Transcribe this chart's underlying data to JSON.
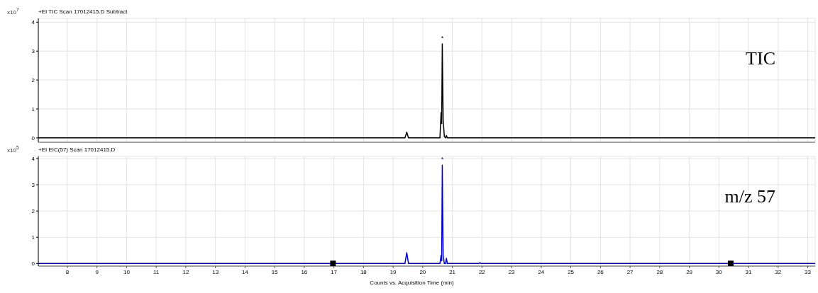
{
  "chart_data": [
    {
      "type": "line",
      "title": "+EI TIC Scan 17012415.D  Subtract",
      "ylabel": "x10$^{7}$",
      "xlim": [
        7.02,
        33.25
      ],
      "xticks": [
        8,
        9,
        10,
        11,
        12,
        13,
        14,
        15,
        16,
        17,
        18,
        19,
        20,
        21,
        22,
        23,
        24,
        25,
        26,
        27,
        28,
        29,
        30,
        31,
        32,
        33
      ],
      "ylim": [
        -0.15,
        4.13
      ],
      "yticks": [
        0,
        1,
        2,
        3,
        4
      ],
      "grid": true,
      "tick_labels": "y",
      "marker": "none",
      "annotations": [
        "TIC",
        {
          "text": "*",
          "x": 20.66,
          "y": 3.25
        }
      ],
      "series": [
        {
          "color": "#000000",
          "x": [
            7.02,
            19.4,
            19.46,
            19.52,
            20.58,
            20.62,
            20.64,
            20.66,
            20.69,
            20.73,
            20.77,
            20.8,
            20.83,
            33.25
          ],
          "values": [
            0,
            0,
            0.2,
            0,
            0,
            0.88,
            0.5,
            3.25,
            0.6,
            0.05,
            0,
            0.08,
            0,
            0
          ]
        }
      ]
    },
    {
      "type": "line",
      "title": "+EI EIC(57) Scan 17012415.D",
      "ylabel": "x10$^{5}$",
      "xlabel": "Counts vs. Acquisition Time (min)",
      "xlim": [
        7.02,
        33.25
      ],
      "xticks": [
        8,
        9,
        10,
        11,
        12,
        13,
        14,
        15,
        16,
        17,
        18,
        19,
        20,
        21,
        22,
        23,
        24,
        25,
        26,
        27,
        28,
        29,
        30,
        31,
        32,
        33
      ],
      "ylim": [
        -0.1,
        4.08
      ],
      "yticks": [
        0,
        1,
        2,
        3,
        4
      ],
      "grid": true,
      "marker": "none",
      "annotations": [
        "m/z 57",
        {
          "text": "*",
          "x": 20.66,
          "y": 3.75
        }
      ],
      "series": [
        {
          "color": "#0000cc",
          "x": [
            7.02,
            19.4,
            19.46,
            19.52,
            20.58,
            20.62,
            20.64,
            20.66,
            20.69,
            20.73,
            20.77,
            20.8,
            20.83,
            21.9,
            21.93,
            21.96,
            33.25
          ],
          "values": [
            0,
            0,
            0.41,
            0,
            0,
            0.31,
            0.1,
            3.75,
            0.3,
            0,
            0,
            0.2,
            0,
            0,
            0.03,
            0,
            0
          ]
        },
        {
          "type": "scatter",
          "marker": "square",
          "color": "#000000",
          "x": [
            16.97,
            30.4
          ],
          "values": [
            0,
            0
          ]
        }
      ]
    }
  ]
}
